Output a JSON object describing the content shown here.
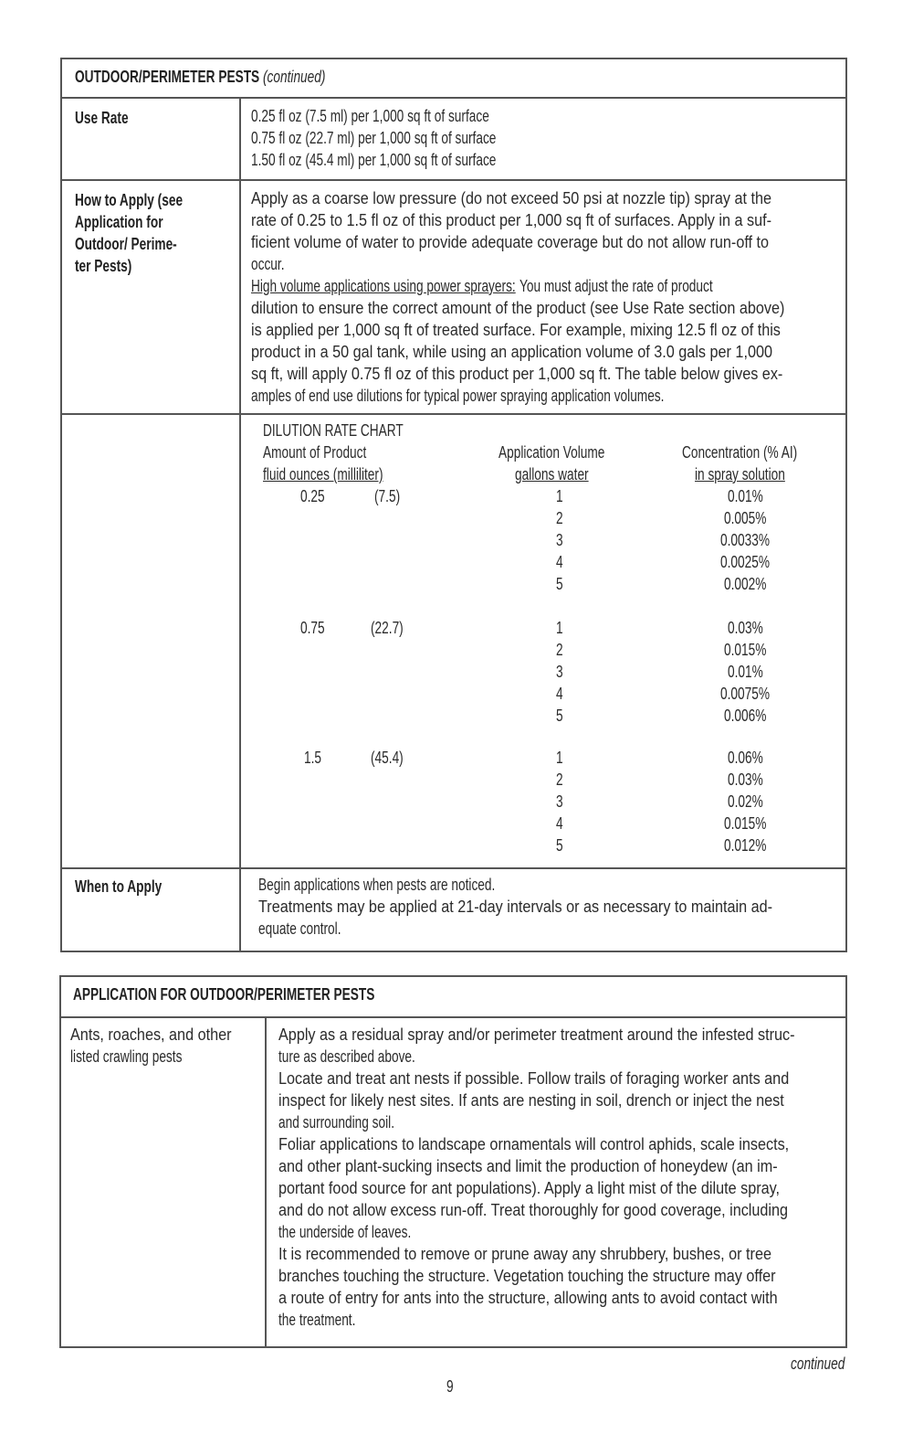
{
  "table1": {
    "header": "OUTDOOR/PERIMETER PESTS",
    "header_note": "(continued)",
    "use_rate": {
      "label": "Use Rate",
      "lines": [
        "0.25 fl oz (7.5 ml) per 1,000 sq ft of surface",
        "0.75 fl oz (22.7 ml) per 1,000 sq ft of surface",
        "1.50 fl oz (45.4 ml) per 1,000 sq ft of surface"
      ]
    },
    "how_to_apply": {
      "label_lines": [
        "How to Apply (see",
        "Application for",
        "Outdoor/ Perime-",
        "ter Pests)"
      ],
      "paragraph1": [
        "Apply as a coarse low pressure (do not exceed 50 psi at nozzle tip) spray at the",
        "rate of 0.25 to 1.5 fl oz of this product per 1,000 sq ft of surfaces. Apply in a suf-",
        "ficient volume of water to provide adequate coverage but do not allow run-off to",
        "occur."
      ],
      "paragraph2_heading": "High volume applications using power sprayers:",
      "paragraph2_first": " You must adjust the rate of product",
      "paragraph2": [
        "dilution to ensure the correct amount of the product (see Use Rate section above)",
        "is applied per 1,000 sq ft of treated surface. For example, mixing 12.5 fl oz of this",
        "product in a 50 gal tank, while using an application volume of 3.0 gals per 1,000",
        "sq ft, will apply 0.75 fl oz of this product per 1,000 sq ft. The table below gives ex-",
        "amples of end use dilutions for typical power spraying application volumes."
      ]
    },
    "dilution_chart": {
      "title": "DILUTION RATE CHART",
      "col1_title": "Amount of Product",
      "col1_sub": "fluid ounces (milliliter)",
      "col2_title": "Application Volume",
      "col2_sub": "gallons water",
      "col3_title": "Concentration (% AI)",
      "col3_sub": "in spray solution",
      "groups": [
        {
          "fl_oz": "0.25",
          "ml": "(7.5)",
          "rows": [
            [
              "1",
              "0.01%"
            ],
            [
              "2",
              "0.005%"
            ],
            [
              "3",
              "0.0033%"
            ],
            [
              "4",
              "0.0025%"
            ],
            [
              "5",
              "0.002%"
            ]
          ]
        },
        {
          "fl_oz": "0.75",
          "ml": "(22.7)",
          "rows": [
            [
              "1",
              "0.03%"
            ],
            [
              "2",
              "0.015%"
            ],
            [
              "3",
              "0.01%"
            ],
            [
              "4",
              "0.0075%"
            ],
            [
              "5",
              "0.006%"
            ]
          ]
        },
        {
          "fl_oz": "1.5",
          "ml": "(45.4)",
          "rows": [
            [
              "1",
              "0.06%"
            ],
            [
              "2",
              "0.03%"
            ],
            [
              "3",
              "0.02%"
            ],
            [
              "4",
              "0.015%"
            ],
            [
              "5",
              "0.012%"
            ]
          ]
        }
      ]
    },
    "when_to_apply": {
      "label": "When to Apply",
      "paragraph1": [
        "Begin applications when pests are noticed."
      ],
      "paragraph2": [
        "Treatments may be applied at 21-day intervals or as necessary to maintain ad-",
        "equate control."
      ]
    }
  },
  "table2": {
    "header": "APPLICATION FOR OUTDOOR/PERIMETER PESTS",
    "row_label": [
      "Ants, roaches, and other",
      "listed crawling pests"
    ],
    "paragraphs": [
      [
        "Apply as a residual spray and/or perimeter treatment around the infested struc-",
        "ture as described above."
      ],
      [
        "Locate and treat ant nests if possible. Follow trails of foraging worker ants and",
        "inspect for likely nest sites. If ants are nesting in soil, drench or inject the nest",
        "and surrounding soil."
      ],
      [
        "Foliar applications to landscape ornamentals will control aphids, scale insects,",
        "and other plant-sucking insects and limit the production of honeydew (an im-",
        "portant food source for ant populations). Apply a light mist of the dilute spray,",
        "and do not allow excess run-off. Treat thoroughly for good coverage, including",
        "the underside of leaves."
      ],
      [
        "It is recommended to remove or prune away any shrubbery, bushes, or tree",
        "branches touching the structure. Vegetation touching the structure may offer",
        "a route of entry for ants into the structure, allowing ants to avoid contact with",
        "the treatment."
      ]
    ]
  },
  "footer": {
    "continued": "continued",
    "page_number": "9"
  }
}
